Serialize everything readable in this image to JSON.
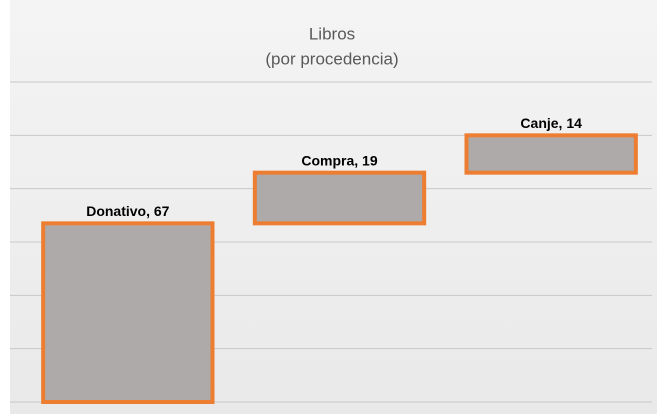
{
  "chart_data": {
    "type": "waterfall",
    "title": "Libros",
    "subtitle": "(por procedencia)",
    "values": [
      67,
      19,
      14
    ],
    "value_labels": [
      "Donativo, 67",
      "Compra, 19",
      "Canje, 14"
    ],
    "color": "#aeaaaa",
    "edge_color": "#ed7d31",
    "ylim": [
      0,
      120
    ],
    "yticks": [
      0,
      20,
      40,
      60,
      80,
      100,
      120
    ],
    "grid": true
  }
}
